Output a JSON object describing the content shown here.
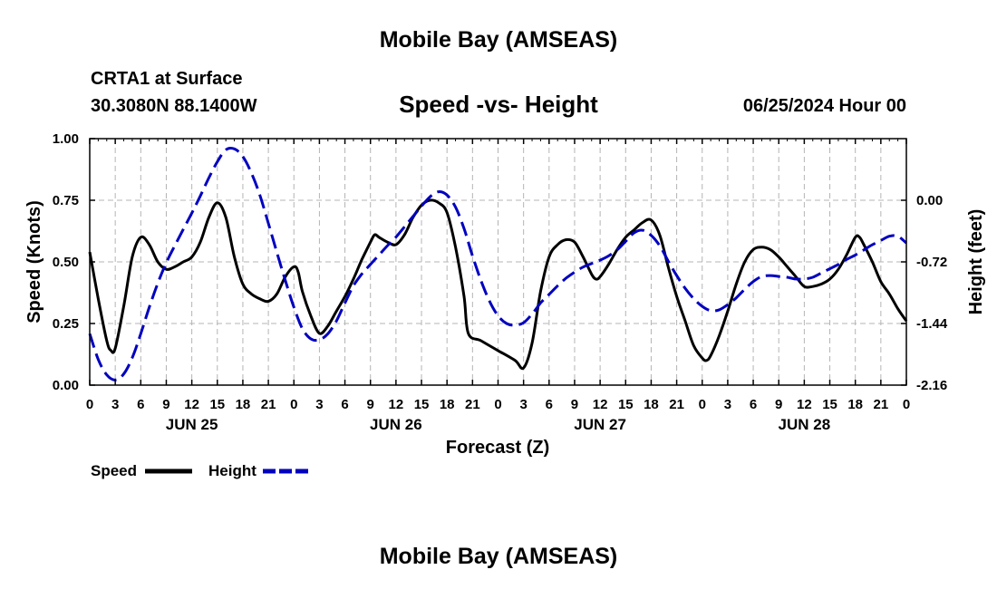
{
  "header": {
    "title": "Mobile Bay (AMSEAS)",
    "station": "CRTA1 at Surface",
    "coords": "30.3080N  88.1400W",
    "datetime": "06/25/2024 Hour 00"
  },
  "footer": {
    "title": "Mobile Bay (AMSEAS)"
  },
  "colors": {
    "speed": "#000000",
    "height": "#0000c0",
    "grid": "#b4b4b4"
  },
  "chart_data": {
    "type": "line",
    "title": "Speed -vs- Height",
    "xlabel": "Forecast (Z)",
    "ylabel": "Speed (Knots)",
    "ylabel_right": "Height (feet)",
    "x_unit": "forecast hour",
    "xlim": [
      0,
      96
    ],
    "ylim": [
      0,
      1
    ],
    "ylim_right": [
      -2.16,
      0.72
    ],
    "x_ticks": [
      0,
      3,
      6,
      9,
      12,
      15,
      18,
      21,
      24,
      27,
      30,
      33,
      36,
      39,
      42,
      45,
      48,
      51,
      54,
      57,
      60,
      63,
      66,
      69,
      72,
      75,
      78,
      81,
      84,
      87,
      90,
      93,
      96
    ],
    "x_tick_labels": [
      "0",
      "3",
      "6",
      "9",
      "12",
      "15",
      "18",
      "21",
      "0",
      "3",
      "6",
      "9",
      "12",
      "15",
      "18",
      "21",
      "0",
      "3",
      "6",
      "9",
      "12",
      "15",
      "18",
      "21",
      "0",
      "3",
      "6",
      "9",
      "12",
      "15",
      "18",
      "21",
      "0"
    ],
    "y_ticks": [
      0,
      0.25,
      0.5,
      0.75,
      1.0
    ],
    "y_tick_labels": [
      "0.00",
      "0.25",
      "0.50",
      "0.75",
      "1.00"
    ],
    "y_ticks_right": [
      -2.16,
      -1.44,
      -0.72,
      0.0
    ],
    "y_tick_labels_right": [
      "-2.16",
      "-1.44",
      "-0.72",
      "0.00"
    ],
    "day_labels": [
      {
        "hour": 12,
        "label": "JUN 25"
      },
      {
        "hour": 36,
        "label": "JUN 26"
      },
      {
        "hour": 60,
        "label": "JUN 27"
      },
      {
        "hour": 84,
        "label": "JUN 28"
      }
    ],
    "grid": true,
    "legend": [
      {
        "name": "Speed",
        "style": "solid"
      },
      {
        "name": "Height",
        "style": "dashed"
      }
    ],
    "series": [
      {
        "name": "Speed",
        "axis": "left",
        "points": [
          [
            0,
            0.54
          ],
          [
            1,
            0.35
          ],
          [
            2,
            0.18
          ],
          [
            2.5,
            0.14
          ],
          [
            3,
            0.15
          ],
          [
            4,
            0.32
          ],
          [
            5,
            0.52
          ],
          [
            6,
            0.6
          ],
          [
            7,
            0.57
          ],
          [
            8,
            0.5
          ],
          [
            9,
            0.47
          ],
          [
            10,
            0.48
          ],
          [
            11,
            0.5
          ],
          [
            12,
            0.52
          ],
          [
            13,
            0.58
          ],
          [
            14,
            0.68
          ],
          [
            15,
            0.74
          ],
          [
            16,
            0.68
          ],
          [
            17,
            0.52
          ],
          [
            18,
            0.41
          ],
          [
            19,
            0.37
          ],
          [
            20,
            0.35
          ],
          [
            21,
            0.34
          ],
          [
            22,
            0.37
          ],
          [
            23,
            0.44
          ],
          [
            24,
            0.48
          ],
          [
            24.5,
            0.46
          ],
          [
            25,
            0.38
          ],
          [
            26,
            0.28
          ],
          [
            27,
            0.21
          ],
          [
            28,
            0.24
          ],
          [
            29,
            0.3
          ],
          [
            30,
            0.36
          ],
          [
            31,
            0.43
          ],
          [
            32,
            0.51
          ],
          [
            33,
            0.58
          ],
          [
            33.5,
            0.61
          ],
          [
            34,
            0.6
          ],
          [
            35,
            0.58
          ],
          [
            36,
            0.57
          ],
          [
            37,
            0.61
          ],
          [
            38,
            0.68
          ],
          [
            39,
            0.73
          ],
          [
            40,
            0.75
          ],
          [
            41,
            0.74
          ],
          [
            42,
            0.7
          ],
          [
            43,
            0.56
          ],
          [
            44,
            0.36
          ],
          [
            44.5,
            0.21
          ],
          [
            46,
            0.18
          ],
          [
            48,
            0.14
          ],
          [
            50,
            0.1
          ],
          [
            51,
            0.07
          ],
          [
            52,
            0.17
          ],
          [
            53,
            0.38
          ],
          [
            54,
            0.52
          ],
          [
            55,
            0.57
          ],
          [
            56,
            0.59
          ],
          [
            57,
            0.58
          ],
          [
            58,
            0.52
          ],
          [
            59,
            0.45
          ],
          [
            59.5,
            0.43
          ],
          [
            60,
            0.44
          ],
          [
            61,
            0.49
          ],
          [
            62,
            0.55
          ],
          [
            63,
            0.6
          ],
          [
            64,
            0.63
          ],
          [
            65,
            0.66
          ],
          [
            66,
            0.67
          ],
          [
            67,
            0.61
          ],
          [
            68,
            0.48
          ],
          [
            69,
            0.36
          ],
          [
            70,
            0.26
          ],
          [
            71,
            0.16
          ],
          [
            72,
            0.11
          ],
          [
            72.5,
            0.1
          ],
          [
            73,
            0.12
          ],
          [
            74,
            0.2
          ],
          [
            75,
            0.3
          ],
          [
            76,
            0.41
          ],
          [
            77,
            0.5
          ],
          [
            78,
            0.55
          ],
          [
            79,
            0.56
          ],
          [
            80,
            0.55
          ],
          [
            81,
            0.52
          ],
          [
            82,
            0.48
          ],
          [
            83,
            0.44
          ],
          [
            84,
            0.4
          ],
          [
            85,
            0.4
          ],
          [
            86,
            0.41
          ],
          [
            87,
            0.43
          ],
          [
            88,
            0.47
          ],
          [
            89,
            0.53
          ],
          [
            90,
            0.6
          ],
          [
            90.5,
            0.6
          ],
          [
            91,
            0.57
          ],
          [
            92,
            0.5
          ],
          [
            93,
            0.42
          ],
          [
            94,
            0.37
          ],
          [
            95,
            0.31
          ],
          [
            96,
            0.26
          ]
        ]
      },
      {
        "name": "Height",
        "axis": "right",
        "points": [
          [
            0,
            -1.56
          ],
          [
            1,
            -1.86
          ],
          [
            2,
            -2.04
          ],
          [
            3,
            -2.1
          ],
          [
            4,
            -2.03
          ],
          [
            5,
            -1.84
          ],
          [
            6,
            -1.56
          ],
          [
            7,
            -1.25
          ],
          [
            8,
            -0.97
          ],
          [
            9,
            -0.73
          ],
          [
            10,
            -0.53
          ],
          [
            11,
            -0.34
          ],
          [
            12,
            -0.15
          ],
          [
            13,
            0.05
          ],
          [
            14,
            0.26
          ],
          [
            15,
            0.45
          ],
          [
            16,
            0.59
          ],
          [
            17,
            0.6
          ],
          [
            18,
            0.51
          ],
          [
            19,
            0.32
          ],
          [
            20,
            0.06
          ],
          [
            21,
            -0.27
          ],
          [
            22,
            -0.61
          ],
          [
            23,
            -0.94
          ],
          [
            24,
            -1.25
          ],
          [
            25,
            -1.5
          ],
          [
            26,
            -1.62
          ],
          [
            27,
            -1.63
          ],
          [
            28,
            -1.56
          ],
          [
            29,
            -1.41
          ],
          [
            30,
            -1.2
          ],
          [
            31,
            -1.0
          ],
          [
            32,
            -0.86
          ],
          [
            33,
            -0.75
          ],
          [
            34,
            -0.64
          ],
          [
            35,
            -0.53
          ],
          [
            36,
            -0.43
          ],
          [
            37,
            -0.31
          ],
          [
            38,
            -0.19
          ],
          [
            39,
            -0.07
          ],
          [
            40,
            0.04
          ],
          [
            41,
            0.1
          ],
          [
            42,
            0.06
          ],
          [
            43,
            -0.08
          ],
          [
            44,
            -0.33
          ],
          [
            45,
            -0.65
          ],
          [
            46,
            -0.94
          ],
          [
            47,
            -1.18
          ],
          [
            48,
            -1.35
          ],
          [
            49,
            -1.44
          ],
          [
            50,
            -1.46
          ],
          [
            51,
            -1.43
          ],
          [
            52,
            -1.33
          ],
          [
            53,
            -1.2
          ],
          [
            54,
            -1.1
          ],
          [
            55,
            -1.0
          ],
          [
            56,
            -0.91
          ],
          [
            57,
            -0.84
          ],
          [
            58,
            -0.78
          ],
          [
            59,
            -0.74
          ],
          [
            60,
            -0.7
          ],
          [
            61,
            -0.65
          ],
          [
            62,
            -0.58
          ],
          [
            63,
            -0.48
          ],
          [
            64,
            -0.38
          ],
          [
            65,
            -0.35
          ],
          [
            66,
            -0.41
          ],
          [
            67,
            -0.53
          ],
          [
            68,
            -0.71
          ],
          [
            69,
            -0.88
          ],
          [
            70,
            -1.03
          ],
          [
            71,
            -1.15
          ],
          [
            72,
            -1.24
          ],
          [
            73,
            -1.29
          ],
          [
            74,
            -1.28
          ],
          [
            75,
            -1.22
          ],
          [
            76,
            -1.14
          ],
          [
            77,
            -1.04
          ],
          [
            78,
            -0.95
          ],
          [
            79,
            -0.89
          ],
          [
            80,
            -0.88
          ],
          [
            81,
            -0.89
          ],
          [
            82,
            -0.9
          ],
          [
            83,
            -0.92
          ],
          [
            84,
            -0.92
          ],
          [
            85,
            -0.9
          ],
          [
            86,
            -0.85
          ],
          [
            87,
            -0.8
          ],
          [
            88,
            -0.75
          ],
          [
            89,
            -0.69
          ],
          [
            90,
            -0.64
          ],
          [
            91,
            -0.58
          ],
          [
            92,
            -0.52
          ],
          [
            93,
            -0.47
          ],
          [
            94,
            -0.42
          ],
          [
            95,
            -0.42
          ],
          [
            96,
            -0.5
          ]
        ]
      }
    ]
  }
}
